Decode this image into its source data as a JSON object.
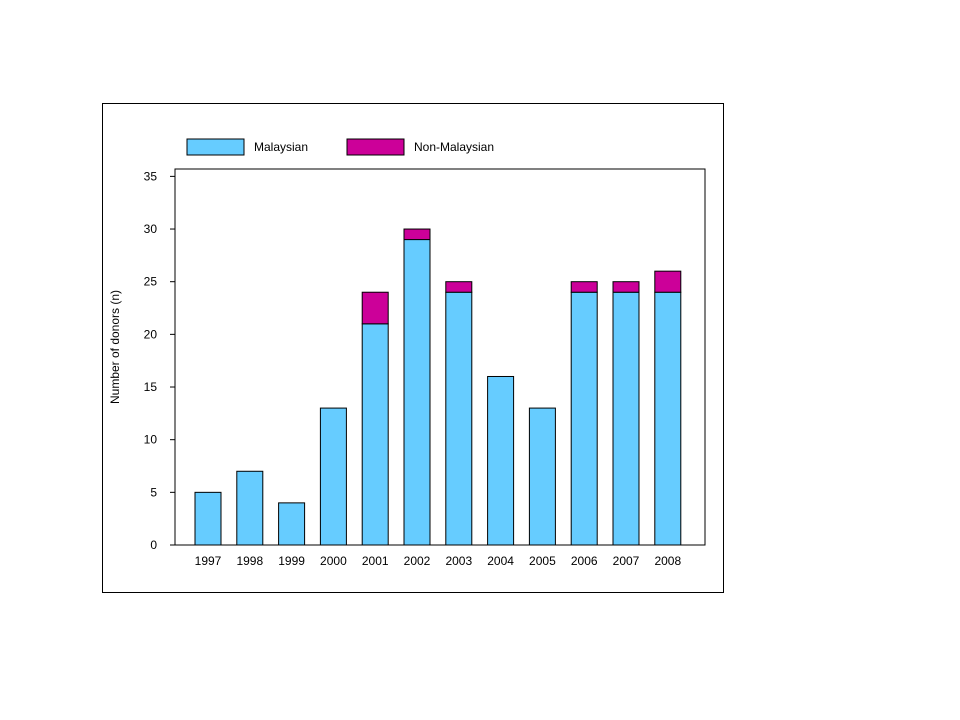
{
  "chart_data": {
    "type": "bar",
    "stacked": true,
    "categories": [
      "1997",
      "1998",
      "1999",
      "2000",
      "2001",
      "2002",
      "2003",
      "2004",
      "2005",
      "2006",
      "2007",
      "2008"
    ],
    "series": [
      {
        "name": "Malaysian",
        "color": "#66ccff",
        "values": [
          5,
          7,
          4,
          13,
          21,
          29,
          24,
          16,
          13,
          24,
          24,
          24
        ]
      },
      {
        "name": "Non-Malaysian",
        "color": "#cc0099",
        "values": [
          0,
          0,
          0,
          0,
          3,
          1,
          1,
          0,
          0,
          1,
          1,
          2
        ]
      }
    ],
    "title": "",
    "xlabel": "",
    "ylabel": "Number of donors (n)",
    "ylim": [
      0,
      35
    ],
    "yticks": [
      "0",
      "5",
      "10",
      "15",
      "20",
      "25",
      "30",
      "35"
    ],
    "grid": false,
    "legend_position": "top"
  }
}
